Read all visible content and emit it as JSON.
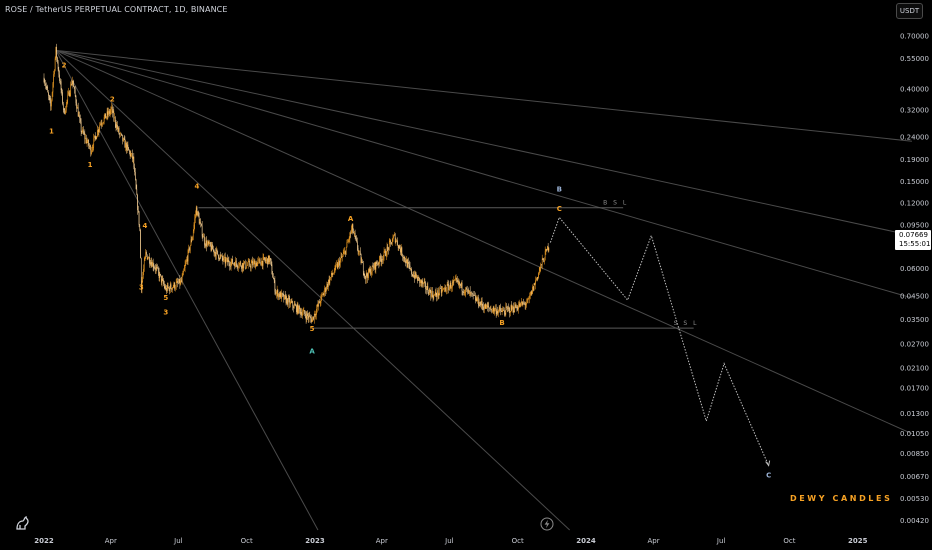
{
  "header": {
    "title": "ROSE / TetherUS PERPETUAL CONTRACT, 1D, BINANCE"
  },
  "toolbar": {
    "currency": "USDT"
  },
  "price_tag": {
    "price": "0.07669",
    "countdown": "15:55:01"
  },
  "watermark": "DEWY CANDLES",
  "icons": {
    "logo": "tradingview-logo-icon",
    "replay": "lightning-bolt-icon"
  },
  "colors": {
    "background": "#000000",
    "candles": "#f7a224",
    "wave_labels": "#f7a224",
    "correction_labels": "#9bb3d6",
    "lines": "#4a4a4a",
    "projection": "#bfbfbf"
  },
  "chart_data": {
    "type": "candlestick",
    "title": "ROSE / TetherUS PERPETUAL CONTRACT, 1D, BINANCE",
    "y_scale": "log",
    "ylim": [
      0.0038,
      0.76
    ],
    "y_ticks": [
      "0.70000",
      "0.55000",
      "0.40000",
      "0.32000",
      "0.24000",
      "0.19000",
      "0.15000",
      "0.12000",
      "0.09500",
      "0.07500",
      "0.06000",
      "0.04500",
      "0.03500",
      "0.02700",
      "0.02100",
      "0.01700",
      "0.01300",
      "0.01050",
      "0.00850",
      "0.00670",
      "0.00530",
      "0.00420"
    ],
    "x_range": [
      "2022-01-01",
      "2025-03-15"
    ],
    "x_ticks": [
      {
        "date": "2022-01-01",
        "label": "2022"
      },
      {
        "date": "2022-04-01",
        "label": "Apr"
      },
      {
        "date": "2022-07-01",
        "label": "Jul"
      },
      {
        "date": "2022-10-01",
        "label": "Oct"
      },
      {
        "date": "2023-01-01",
        "label": "2023"
      },
      {
        "date": "2023-04-01",
        "label": "Apr"
      },
      {
        "date": "2023-07-01",
        "label": "Jul"
      },
      {
        "date": "2023-10-01",
        "label": "Oct"
      },
      {
        "date": "2024-01-01",
        "label": "2024"
      },
      {
        "date": "2024-04-01",
        "label": "Apr"
      },
      {
        "date": "2024-07-01",
        "label": "Jul"
      },
      {
        "date": "2024-10-01",
        "label": "Oct"
      },
      {
        "date": "2025-01-01",
        "label": "2025"
      }
    ],
    "price_path": [
      {
        "date": "2022-01-01",
        "close": 0.45
      },
      {
        "date": "2022-01-10",
        "close": 0.33
      },
      {
        "date": "2022-01-17",
        "close": 0.6
      },
      {
        "date": "2022-01-28",
        "close": 0.31
      },
      {
        "date": "2022-02-08",
        "close": 0.44
      },
      {
        "date": "2022-02-20",
        "close": 0.26
      },
      {
        "date": "2022-03-05",
        "close": 0.21
      },
      {
        "date": "2022-03-18",
        "close": 0.28
      },
      {
        "date": "2022-04-02",
        "close": 0.32
      },
      {
        "date": "2022-04-12",
        "close": 0.25
      },
      {
        "date": "2022-05-01",
        "close": 0.19
      },
      {
        "date": "2022-05-10",
        "close": 0.09
      },
      {
        "date": "2022-05-12",
        "close": 0.05
      },
      {
        "date": "2022-05-18",
        "close": 0.07
      },
      {
        "date": "2022-06-01",
        "close": 0.06
      },
      {
        "date": "2022-06-14",
        "close": 0.048
      },
      {
        "date": "2022-07-05",
        "close": 0.052
      },
      {
        "date": "2022-07-20",
        "close": 0.085
      },
      {
        "date": "2022-07-25",
        "close": 0.113
      },
      {
        "date": "2022-08-05",
        "close": 0.08
      },
      {
        "date": "2022-09-01",
        "close": 0.065
      },
      {
        "date": "2022-10-01",
        "close": 0.062
      },
      {
        "date": "2022-11-01",
        "close": 0.066
      },
      {
        "date": "2022-11-09",
        "close": 0.047
      },
      {
        "date": "2022-12-01",
        "close": 0.041
      },
      {
        "date": "2022-12-28",
        "close": 0.035
      },
      {
        "date": "2023-01-20",
        "close": 0.053
      },
      {
        "date": "2023-02-10",
        "close": 0.071
      },
      {
        "date": "2023-02-20",
        "close": 0.092
      },
      {
        "date": "2023-03-10",
        "close": 0.055
      },
      {
        "date": "2023-04-05",
        "close": 0.07
      },
      {
        "date": "2023-04-18",
        "close": 0.084
      },
      {
        "date": "2023-05-10",
        "close": 0.058
      },
      {
        "date": "2023-06-10",
        "close": 0.045
      },
      {
        "date": "2023-07-10",
        "close": 0.052
      },
      {
        "date": "2023-08-17",
        "close": 0.04
      },
      {
        "date": "2023-09-11",
        "close": 0.038
      },
      {
        "date": "2023-10-15",
        "close": 0.042
      },
      {
        "date": "2023-10-31",
        "close": 0.06
      },
      {
        "date": "2023-11-12",
        "close": 0.077
      }
    ],
    "projection_path": [
      {
        "date": "2023-11-14",
        "close": 0.079
      },
      {
        "date": "2023-11-26",
        "close": 0.103
      },
      {
        "date": "2024-02-26",
        "close": 0.043
      },
      {
        "date": "2024-03-29",
        "close": 0.085
      },
      {
        "date": "2024-06-11",
        "close": 0.012
      },
      {
        "date": "2024-07-05",
        "close": 0.022
      },
      {
        "date": "2024-09-03",
        "close": 0.0075
      }
    ],
    "horizontal_levels": [
      {
        "label": "BSL",
        "price": 0.114,
        "from": "2022-07-28",
        "to": "2024-02-20"
      },
      {
        "label": "SSL",
        "price": 0.032,
        "from": "2022-12-28",
        "to": "2024-05-25"
      }
    ],
    "fan_origin": {
      "date": "2022-01-17",
      "price": 0.6
    },
    "fan_lines": [
      {
        "date": "2025-03-15",
        "price": 0.23
      },
      {
        "date": "2025-03-15",
        "price": 0.085
      },
      {
        "date": "2025-03-15",
        "price": 0.044
      },
      {
        "date": "2025-03-15",
        "price": 0.0105
      },
      {
        "date": "2023-12-10",
        "price": 0.0038
      },
      {
        "date": "2023-01-05",
        "price": 0.0038
      }
    ],
    "wave_labels": [
      {
        "text": "1",
        "date": "2022-01-11",
        "price": 0.25,
        "color": "#f7a224"
      },
      {
        "text": "2",
        "date": "2022-01-28",
        "price": 0.5,
        "color": "#f7a224"
      },
      {
        "text": "1",
        "date": "2022-03-04",
        "price": 0.175,
        "color": "#f7a224"
      },
      {
        "text": "2",
        "date": "2022-04-03",
        "price": 0.35,
        "color": "#f7a224"
      },
      {
        "text": "4",
        "date": "2022-05-17",
        "price": 0.092,
        "color": "#f7a224"
      },
      {
        "text": "3",
        "date": "2022-05-12",
        "price": 0.048,
        "color": "#f7a224"
      },
      {
        "text": "5",
        "date": "2022-06-14",
        "price": 0.043,
        "color": "#f7a224"
      },
      {
        "text": "3",
        "date": "2022-06-14",
        "price": 0.037,
        "color": "#f7a224"
      },
      {
        "text": "4",
        "date": "2022-07-26",
        "price": 0.14,
        "color": "#f7a224"
      },
      {
        "text": "5",
        "date": "2022-12-28",
        "price": 0.031,
        "color": "#f7a224"
      },
      {
        "text": "A",
        "date": "2022-12-28",
        "price": 0.0245,
        "color": "#4fc3b7"
      },
      {
        "text": "A",
        "date": "2023-02-18",
        "price": 0.099,
        "color": "#f7a224"
      },
      {
        "text": "B",
        "date": "2023-09-10",
        "price": 0.033,
        "color": "#f7a224"
      },
      {
        "text": "B",
        "date": "2023-11-26",
        "price": 0.135,
        "color": "#9bb3d6"
      },
      {
        "text": "C",
        "date": "2023-11-26",
        "price": 0.11,
        "color": "#f7a224"
      },
      {
        "text": "C",
        "date": "2024-09-03",
        "price": 0.0066,
        "color": "#9bb3d6"
      }
    ]
  }
}
